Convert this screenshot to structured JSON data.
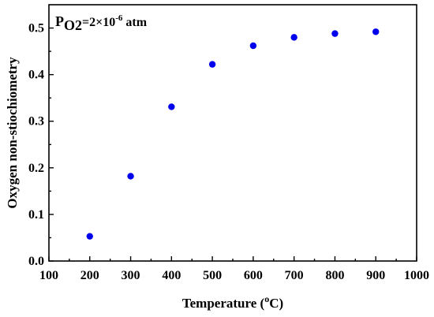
{
  "chart_data": {
    "type": "scatter",
    "title": "",
    "annotation": {
      "p": "P",
      "o2": "O2",
      "rest": "=2×10",
      "exp": "-6",
      "unit": " atm"
    },
    "xlabel": {
      "prefix": "Temperature (",
      "sup": "o",
      "suffix": "C)"
    },
    "ylabel": "Oxygen non-stiochiometry",
    "xlim": [
      100,
      1000
    ],
    "ylim": [
      0.0,
      0.55
    ],
    "xticks": [
      100,
      200,
      300,
      400,
      500,
      600,
      700,
      800,
      900,
      1000
    ],
    "yticks": [
      "0.0",
      "0.1",
      "0.2",
      "0.3",
      "0.4",
      "0.5"
    ],
    "grid": false,
    "marker_color": "#0000ee",
    "series": [
      {
        "x": [
          200,
          300,
          400,
          500,
          600,
          700,
          800,
          900
        ],
        "y": [
          0.053,
          0.182,
          0.331,
          0.422,
          0.462,
          0.48,
          0.488,
          0.492
        ]
      }
    ]
  }
}
